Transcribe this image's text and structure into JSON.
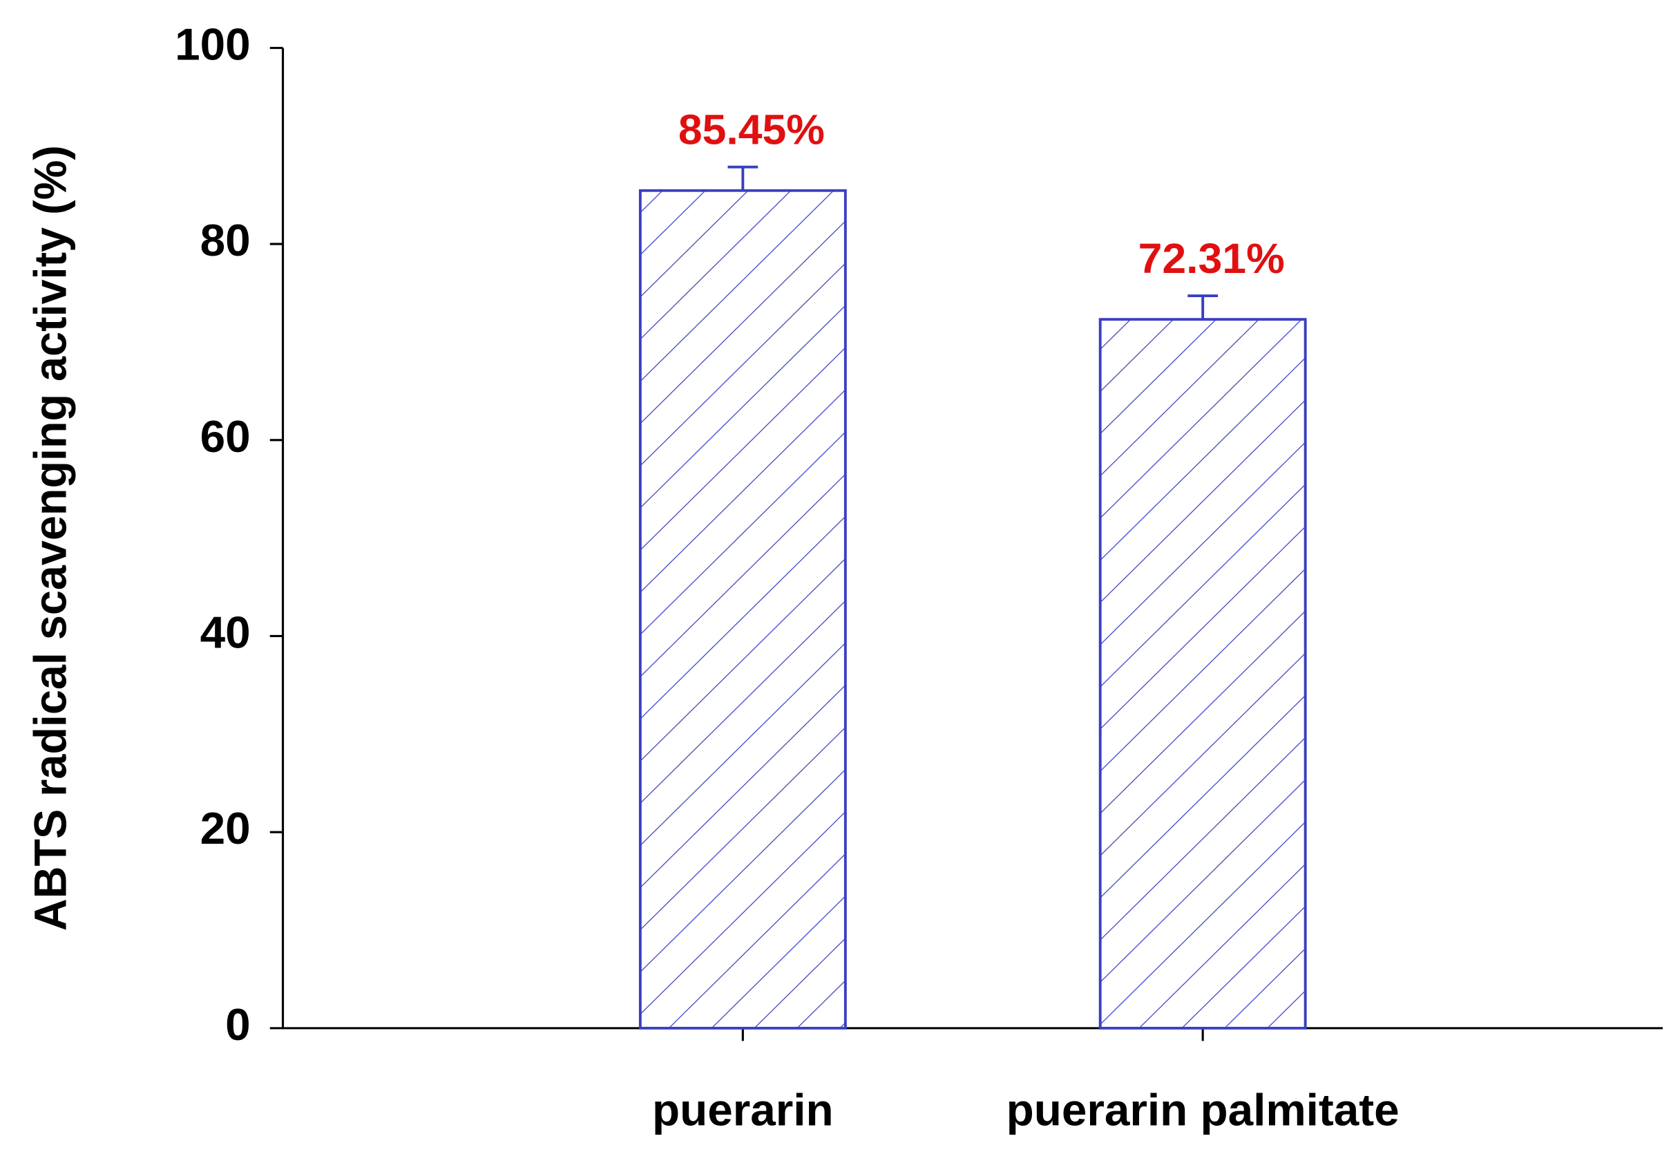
{
  "chart_data": {
    "type": "bar",
    "y_label": "ABTS radical scavenging activity (%)",
    "categories": [
      "puerarin",
      "puerarin palmitate"
    ],
    "values": [
      85.45,
      72.31
    ],
    "value_labels": [
      "85.45%",
      "72.31%"
    ],
    "errors": [
      2.4,
      2.4
    ],
    "color": "#3a3fc0",
    "label_color": "#e01010",
    "ylim": [
      0,
      100
    ],
    "yticks": [
      0,
      20,
      40,
      60,
      80,
      100
    ]
  }
}
